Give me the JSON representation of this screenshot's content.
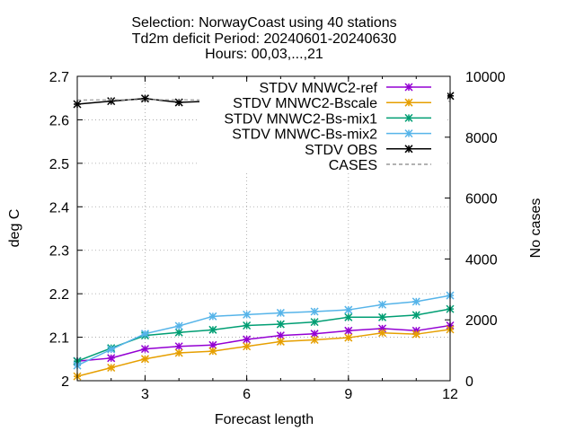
{
  "chart_data": {
    "type": "line",
    "title_lines": [
      "Selection: NorwayCoast using    40 stations",
      "Td2m deficit   Period: 20240601-20240630",
      "Hours: 00,03,...,21"
    ],
    "xlabel": "Forecast length",
    "ylabel": "deg C",
    "y2label": "No cases",
    "xlim": [
      1,
      12
    ],
    "ylim": [
      2,
      2.7
    ],
    "y2lim": [
      0,
      10000
    ],
    "xticks": [
      3,
      6,
      9,
      12
    ],
    "yticks": [
      "2",
      "2.1",
      "2.2",
      "2.3",
      "2.4",
      "2.5",
      "2.6",
      "2.7"
    ],
    "y2ticks": [
      "0",
      "2000",
      "4000",
      "6000",
      "8000",
      "10000"
    ],
    "grid": true,
    "legend_position": "top-right",
    "x": [
      1,
      2,
      3,
      4,
      5,
      6,
      7,
      8,
      9,
      10,
      11,
      12
    ],
    "series": [
      {
        "name": "STDV MNWC2-ref",
        "color": "#9400d3",
        "axis": "left",
        "marker": "star",
        "values": [
          2.045,
          2.052,
          2.073,
          2.079,
          2.082,
          2.095,
          2.104,
          2.108,
          2.115,
          2.12,
          2.115,
          2.127
        ]
      },
      {
        "name": "STDV MNWC2-Bscale",
        "color": "#e69f00",
        "axis": "left",
        "marker": "star",
        "values": [
          2.01,
          2.03,
          2.05,
          2.064,
          2.068,
          2.079,
          2.09,
          2.094,
          2.099,
          2.11,
          2.107,
          2.118
        ]
      },
      {
        "name": "STDV MNWC2-Bs-mix1",
        "color": "#009e73",
        "axis": "left",
        "marker": "star",
        "values": [
          2.045,
          2.075,
          2.104,
          2.111,
          2.117,
          2.127,
          2.13,
          2.135,
          2.146,
          2.146,
          2.151,
          2.165
        ]
      },
      {
        "name": "STDV MNWC-Bs-mix2",
        "color": "#56b4e9",
        "axis": "left",
        "marker": "star",
        "values": [
          2.035,
          2.072,
          2.108,
          2.126,
          2.148,
          2.152,
          2.156,
          2.159,
          2.163,
          2.175,
          2.182,
          2.196
        ]
      },
      {
        "name": "STDV OBS",
        "color": "#000000",
        "axis": "left",
        "marker": "star",
        "values": [
          2.636,
          2.643,
          2.649,
          2.64,
          2.643,
          2.649,
          2.646,
          2.645,
          2.654,
          2.644,
          2.648,
          2.655
        ]
      },
      {
        "name": "CASES",
        "color": "#999999",
        "axis": "right",
        "marker": "none",
        "dashed": true,
        "values": [
          9220,
          9230,
          9230,
          9230,
          9220,
          9220,
          9220,
          9220,
          9220,
          9220,
          9220,
          9180
        ]
      }
    ]
  }
}
